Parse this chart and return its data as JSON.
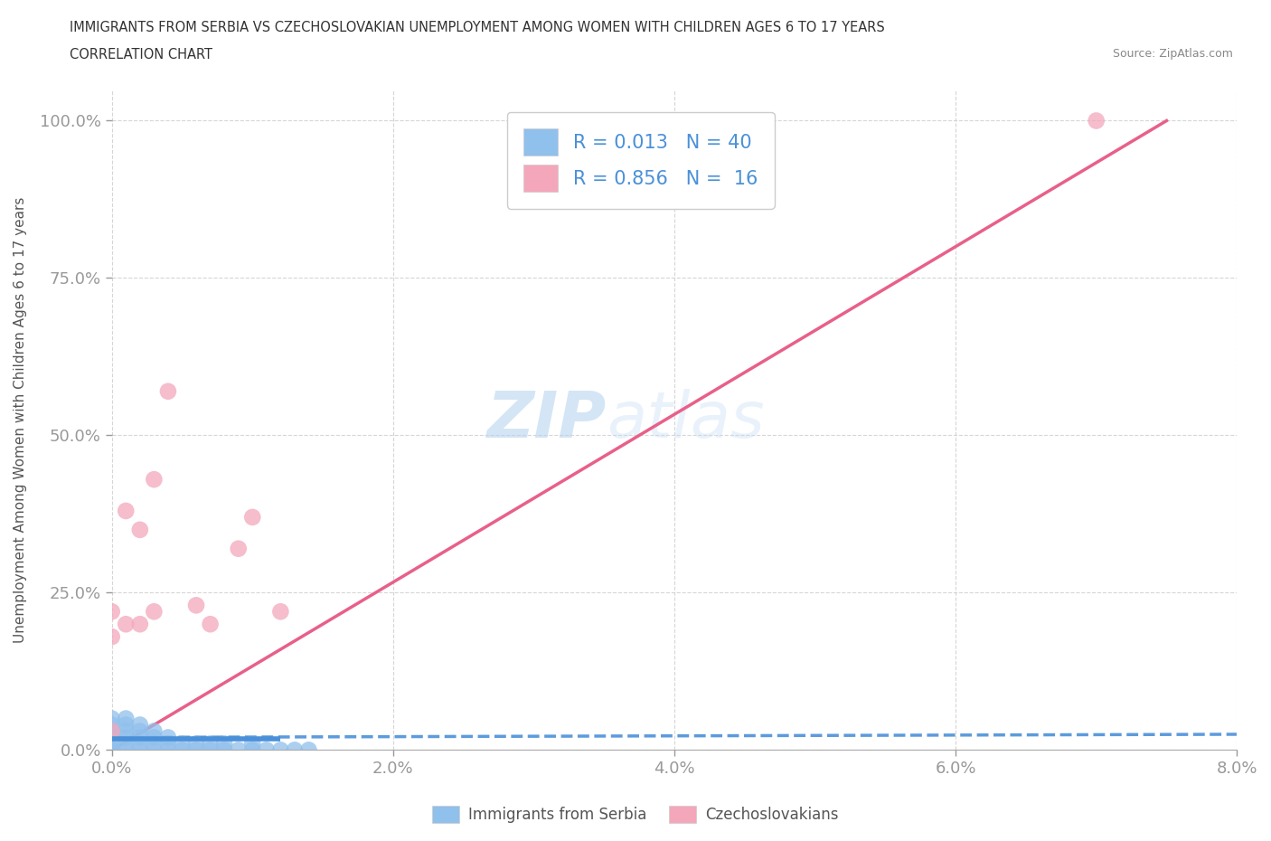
{
  "title_line1": "IMMIGRANTS FROM SERBIA VS CZECHOSLOVAKIAN UNEMPLOYMENT AMONG WOMEN WITH CHILDREN AGES 6 TO 17 YEARS",
  "title_line2": "CORRELATION CHART",
  "source_text": "Source: ZipAtlas.com",
  "ylabel": "Unemployment Among Women with Children Ages 6 to 17 years",
  "xmin": 0.0,
  "xmax": 0.08,
  "ymin": 0.0,
  "ymax": 1.05,
  "xtick_labels": [
    "0.0%",
    "2.0%",
    "4.0%",
    "6.0%",
    "8.0%"
  ],
  "xtick_values": [
    0.0,
    0.02,
    0.04,
    0.06,
    0.08
  ],
  "ytick_labels": [
    "0.0%",
    "25.0%",
    "50.0%",
    "75.0%",
    "100.0%"
  ],
  "ytick_values": [
    0.0,
    0.25,
    0.5,
    0.75,
    1.0
  ],
  "serbia_color": "#90C0EC",
  "czecho_color": "#F4A7BB",
  "serbia_line_color": "#4A90D9",
  "czecho_line_color": "#E8608A",
  "serbia_R": 0.013,
  "serbia_N": 40,
  "czecho_R": 0.856,
  "czecho_N": 16,
  "legend_label_1": "Immigrants from Serbia",
  "legend_label_2": "Czechoslovakians",
  "watermark_1": "ZIP",
  "watermark_2": "atlas",
  "serbia_x": [
    0.0,
    0.0,
    0.0,
    0.0,
    0.0,
    0.0,
    0.0,
    0.001,
    0.001,
    0.001,
    0.001,
    0.001,
    0.001,
    0.002,
    0.002,
    0.002,
    0.002,
    0.002,
    0.003,
    0.003,
    0.003,
    0.003,
    0.004,
    0.004,
    0.004,
    0.005,
    0.005,
    0.006,
    0.006,
    0.007,
    0.007,
    0.008,
    0.008,
    0.009,
    0.01,
    0.01,
    0.011,
    0.012,
    0.013,
    0.014
  ],
  "serbia_y": [
    0.0,
    0.0,
    0.01,
    0.02,
    0.03,
    0.04,
    0.05,
    0.0,
    0.01,
    0.02,
    0.03,
    0.04,
    0.05,
    0.0,
    0.01,
    0.02,
    0.03,
    0.04,
    0.0,
    0.01,
    0.02,
    0.03,
    0.0,
    0.01,
    0.02,
    0.0,
    0.01,
    0.0,
    0.01,
    0.0,
    0.01,
    0.0,
    0.01,
    0.0,
    0.0,
    0.01,
    0.0,
    0.0,
    0.0,
    0.0
  ],
  "czecho_x": [
    0.0,
    0.0,
    0.0,
    0.001,
    0.001,
    0.002,
    0.002,
    0.003,
    0.003,
    0.004,
    0.006,
    0.007,
    0.009,
    0.01,
    0.012,
    0.07
  ],
  "czecho_y": [
    0.03,
    0.18,
    0.22,
    0.2,
    0.38,
    0.2,
    0.35,
    0.22,
    0.43,
    0.57,
    0.23,
    0.2,
    0.32,
    0.37,
    0.22,
    1.0
  ]
}
